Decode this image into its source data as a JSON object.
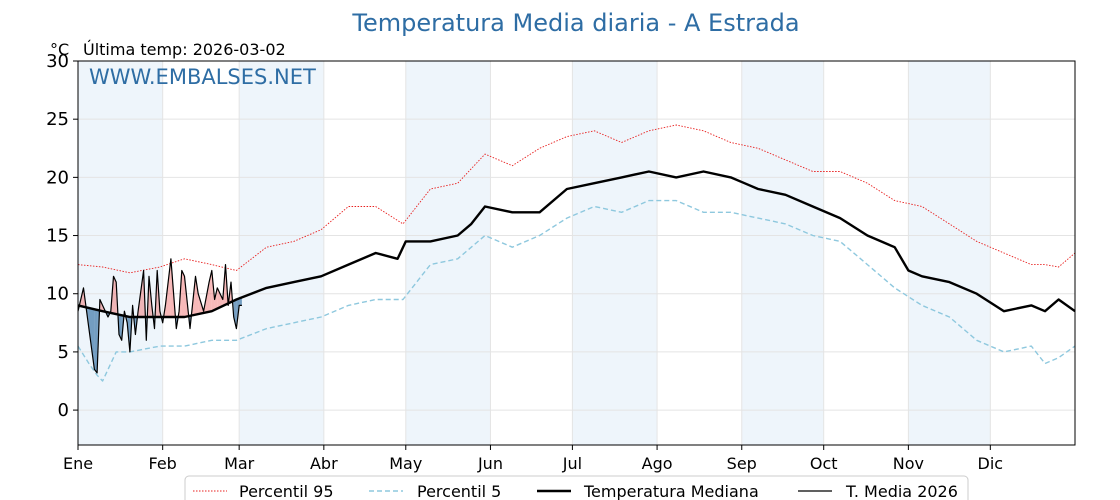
{
  "chart_data": {
    "type": "line",
    "title": "Temperatura Media diaria - A Estrada",
    "unit_label": "°C",
    "last_temp_label": "Última temp: 2026-03-02",
    "watermark": "WWW.EMBALSES.NET",
    "ylim": [
      -3,
      30
    ],
    "yticks": [
      0,
      5,
      10,
      15,
      20,
      25,
      30
    ],
    "xlim": [
      1,
      366
    ],
    "month_labels": [
      "Ene",
      "Feb",
      "Mar",
      "Abr",
      "May",
      "Jun",
      "Jul",
      "Ago",
      "Sep",
      "Oct",
      "Nov",
      "Dic"
    ],
    "month_starts": [
      1,
      32,
      60,
      91,
      121,
      152,
      182,
      213,
      244,
      274,
      305,
      335
    ],
    "grid": true,
    "legend_position": "bottom",
    "colors": {
      "p95": "#e8201f",
      "p5": "#8ec8de",
      "median": "#000000",
      "current": "#000000",
      "above_fill": "#f08080",
      "below_fill": "#4a7fae",
      "band": "#eef5fb",
      "title": "#2e6da4"
    },
    "series": [
      {
        "name": "Percentil 95",
        "style": "dotted",
        "x": [
          1,
          10,
          20,
          31,
          40,
          50,
          59,
          70,
          80,
          90,
          100,
          110,
          120,
          130,
          140,
          150,
          160,
          170,
          180,
          190,
          200,
          210,
          220,
          230,
          240,
          250,
          260,
          270,
          280,
          290,
          300,
          310,
          320,
          330,
          340,
          350,
          355,
          360,
          366
        ],
        "y": [
          12.5,
          12.3,
          11.8,
          12.3,
          13.0,
          12.5,
          12.0,
          14.0,
          14.5,
          15.5,
          17.5,
          17.5,
          16.0,
          19.0,
          19.5,
          22.0,
          21.0,
          22.5,
          23.5,
          24.0,
          23.0,
          24.0,
          24.5,
          24.0,
          23.0,
          22.5,
          21.5,
          20.5,
          20.5,
          19.5,
          18.0,
          17.5,
          16.0,
          14.5,
          13.5,
          12.5,
          12.5,
          12.3,
          13.5
        ]
      },
      {
        "name": "Percentil 5",
        "style": "dashed",
        "x": [
          1,
          5,
          8,
          10,
          15,
          20,
          31,
          40,
          50,
          59,
          70,
          80,
          90,
          100,
          110,
          120,
          130,
          140,
          150,
          160,
          170,
          180,
          190,
          200,
          210,
          220,
          230,
          240,
          250,
          260,
          270,
          280,
          290,
          300,
          310,
          320,
          330,
          340,
          350,
          355,
          360,
          366
        ],
        "y": [
          5.5,
          4.0,
          3.0,
          2.5,
          5.0,
          5.0,
          5.5,
          5.5,
          6.0,
          6.0,
          7.0,
          7.5,
          8.0,
          9.0,
          9.5,
          9.5,
          12.5,
          13.0,
          15.0,
          14.0,
          15.0,
          16.5,
          17.5,
          17.0,
          18.0,
          18.0,
          17.0,
          17.0,
          16.5,
          16.0,
          15.0,
          14.5,
          12.5,
          10.5,
          9.0,
          8.0,
          6.0,
          5.0,
          5.5,
          4.0,
          4.5,
          5.5
        ]
      },
      {
        "name": "Temperatura Mediana",
        "style": "solid-thick",
        "x": [
          1,
          10,
          20,
          31,
          40,
          50,
          59,
          70,
          80,
          90,
          100,
          110,
          118,
          121,
          130,
          140,
          145,
          150,
          160,
          170,
          180,
          190,
          200,
          210,
          220,
          230,
          240,
          245,
          250,
          260,
          270,
          280,
          290,
          300,
          305,
          310,
          320,
          330,
          340,
          350,
          355,
          360,
          366
        ],
        "y": [
          9.0,
          8.5,
          8.0,
          8.0,
          8.0,
          8.5,
          9.5,
          10.5,
          11.0,
          11.5,
          12.5,
          13.5,
          13.0,
          14.5,
          14.5,
          15.0,
          16.0,
          17.5,
          17.0,
          17.0,
          19.0,
          19.5,
          20.0,
          20.5,
          20.0,
          20.5,
          20.0,
          19.5,
          19.0,
          18.5,
          17.5,
          16.5,
          15.0,
          14.0,
          12.0,
          11.5,
          11.0,
          10.0,
          8.5,
          9.0,
          8.5,
          9.5,
          8.5
        ]
      },
      {
        "name": "T. Media 2026",
        "style": "solid-thin",
        "x": [
          1,
          3,
          5,
          7,
          8,
          9,
          10,
          12,
          13,
          14,
          15,
          16,
          17,
          18,
          19,
          20,
          21,
          22,
          23,
          25,
          26,
          27,
          28,
          29,
          30,
          31,
          32,
          33,
          35,
          37,
          38,
          39,
          40,
          42,
          44,
          45,
          47,
          49,
          50,
          51,
          52,
          54,
          55,
          56,
          57,
          58,
          59,
          60,
          61
        ],
        "y": [
          8.5,
          10.5,
          7.0,
          3.5,
          3.2,
          9.5,
          9.0,
          8.0,
          8.5,
          11.5,
          11.0,
          6.5,
          6.0,
          8.5,
          7.5,
          5.0,
          9.0,
          6.5,
          8.5,
          12.0,
          6.0,
          11.5,
          9.0,
          7.0,
          12.0,
          8.5,
          7.5,
          9.0,
          13.0,
          7.0,
          8.5,
          12.0,
          11.5,
          7.0,
          11.5,
          10.0,
          8.5,
          11.0,
          12.0,
          9.5,
          10.5,
          9.5,
          12.5,
          9.0,
          11.0,
          8.0,
          7.0,
          9.0,
          9.0
        ]
      }
    ]
  }
}
